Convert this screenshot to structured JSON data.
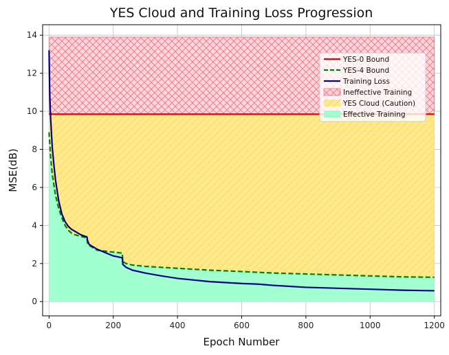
{
  "chart_data": {
    "type": "line",
    "title": "YES Cloud and Training Loss Progression",
    "xlabel": "Epoch Number",
    "ylabel": "MSE(dB)",
    "xlim": [
      -20,
      1220
    ],
    "ylim": [
      -0.75,
      14.55
    ],
    "x_ticks": [
      0,
      200,
      400,
      600,
      800,
      1000,
      1200
    ],
    "y_ticks": [
      0,
      2,
      4,
      6,
      8,
      10,
      12,
      14
    ],
    "grid": true,
    "legend_position": "upper-right",
    "colors": {
      "yes0": "#e8000b",
      "yes4": "#008000",
      "training": "#00008b",
      "ineffective_fill": "#ffd6dc",
      "ineffective_hatch": "#f07080",
      "cloud_fill": "#ffe98a",
      "cloud_hatch": "#ffd84a",
      "effective_fill": "#9dffcc"
    },
    "series": [
      {
        "name": "YES-0 Bound",
        "style": "solid",
        "x": [
          0,
          1200
        ],
        "y": [
          9.85,
          9.85
        ]
      },
      {
        "name": "YES-4 Bound",
        "style": "dashed",
        "x": [
          0,
          5,
          10,
          20,
          30,
          40,
          50,
          60,
          70,
          80,
          100,
          118,
          120,
          125,
          150,
          200,
          228,
          230,
          240,
          260,
          300,
          400,
          500,
          600,
          700,
          800,
          900,
          1000,
          1100,
          1200
        ],
        "y": [
          8.9,
          7.6,
          6.7,
          5.6,
          4.9,
          4.4,
          4.0,
          3.75,
          3.6,
          3.52,
          3.42,
          3.35,
          3.05,
          2.95,
          2.7,
          2.6,
          2.55,
          2.1,
          2.0,
          1.92,
          1.85,
          1.75,
          1.65,
          1.58,
          1.5,
          1.45,
          1.4,
          1.35,
          1.3,
          1.28
        ]
      },
      {
        "name": "Training Loss",
        "style": "solid",
        "x": [
          0,
          2,
          5,
          10,
          15,
          20,
          30,
          40,
          50,
          60,
          70,
          80,
          100,
          118,
          120,
          125,
          150,
          200,
          228,
          230,
          240,
          260,
          300,
          350,
          400,
          500,
          600,
          650,
          700,
          800,
          900,
          1000,
          1100,
          1200
        ],
        "y": [
          13.2,
          11.0,
          9.6,
          8.1,
          7.2,
          6.4,
          5.3,
          4.6,
          4.2,
          3.95,
          3.8,
          3.7,
          3.5,
          3.4,
          3.2,
          3.0,
          2.75,
          2.4,
          2.3,
          1.95,
          1.8,
          1.65,
          1.5,
          1.35,
          1.22,
          1.05,
          0.95,
          0.92,
          0.85,
          0.75,
          0.7,
          0.65,
          0.6,
          0.57
        ]
      }
    ],
    "regions": [
      {
        "name": "Ineffective Training",
        "y_from": 9.85,
        "y_to": 13.9
      },
      {
        "name": "YES Cloud (Caution)",
        "from": "YES-4 Bound",
        "to": "YES-0 Bound"
      },
      {
        "name": "Effective Training",
        "from": 0,
        "to": "YES-4 Bound"
      }
    ]
  }
}
